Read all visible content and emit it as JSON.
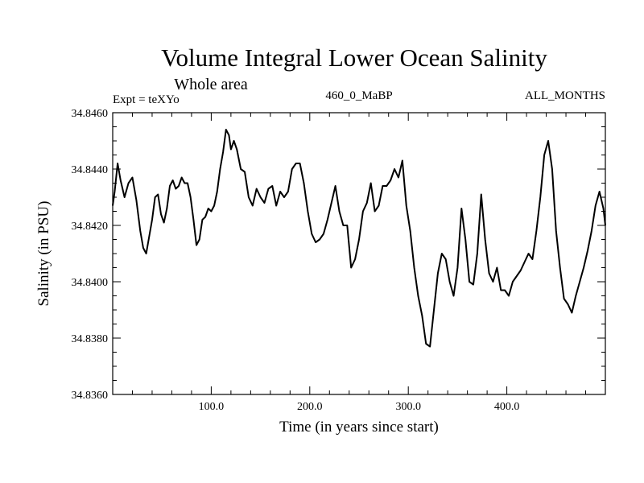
{
  "chart_data": {
    "type": "line",
    "title": "Volume Integral Lower Ocean Salinity",
    "subtitle": "Whole area",
    "annotations": {
      "experiment": "Expt = teXYo",
      "run": "460_0_MaBP",
      "months": "ALL_MONTHS"
    },
    "xlabel": "Time (in years since start)",
    "ylabel": "Salinity (in PSU)",
    "xlim": [
      0,
      500
    ],
    "ylim": [
      34.836,
      34.846
    ],
    "xticks": [
      100,
      200,
      300,
      400
    ],
    "xtick_labels": [
      "100.0",
      "200.0",
      "300.0",
      "400.0"
    ],
    "yticks": [
      34.836,
      34.838,
      34.84,
      34.842,
      34.844,
      34.846
    ],
    "ytick_labels": [
      "34.8360",
      "34.8380",
      "34.8400",
      "34.8420",
      "34.8440",
      "34.8460"
    ],
    "grid": false,
    "series": [
      {
        "color": "#000000",
        "x": [
          0,
          2,
          5,
          8,
          12,
          16,
          20,
          24,
          28,
          31,
          34,
          37,
          40,
          43,
          46,
          49,
          52,
          55,
          58,
          61,
          64,
          67,
          70,
          73,
          76,
          79,
          82,
          85,
          88,
          91,
          94,
          97,
          100,
          103,
          106,
          109,
          112,
          115,
          118,
          120,
          123,
          126,
          130,
          134,
          138,
          142,
          146,
          150,
          154,
          158,
          162,
          166,
          170,
          174,
          178,
          182,
          186,
          190,
          194,
          198,
          202,
          206,
          210,
          214,
          218,
          222,
          226,
          230,
          234,
          238,
          242,
          246,
          250,
          254,
          258,
          262,
          266,
          270,
          274,
          278,
          282,
          286,
          290,
          294,
          298,
          302,
          306,
          310,
          314,
          318,
          322,
          326,
          330,
          334,
          338,
          342,
          346,
          350,
          354,
          358,
          362,
          366,
          370,
          374,
          378,
          382,
          386,
          390,
          394,
          398,
          402,
          406,
          410,
          414,
          418,
          422,
          426,
          430,
          434,
          438,
          442,
          446,
          450,
          454,
          458,
          462,
          466,
          470,
          474,
          478,
          482,
          486,
          490,
          494,
          498,
          500
        ],
        "y": [
          34.8427,
          34.8432,
          34.8442,
          34.8436,
          34.843,
          34.8435,
          34.8437,
          34.8429,
          34.8418,
          34.8412,
          34.841,
          34.8416,
          34.8422,
          34.843,
          34.8431,
          34.8424,
          34.8421,
          34.8426,
          34.8434,
          34.8436,
          34.8433,
          34.8434,
          34.8437,
          34.8435,
          34.8435,
          34.843,
          34.8422,
          34.8413,
          34.8415,
          34.8422,
          34.8423,
          34.8426,
          34.8425,
          34.8427,
          34.8432,
          34.844,
          34.8446,
          34.8454,
          34.8452,
          34.8447,
          34.845,
          34.8447,
          34.844,
          34.8439,
          34.843,
          34.8427,
          34.8433,
          34.843,
          34.8428,
          34.8433,
          34.8434,
          34.8427,
          34.8432,
          34.843,
          34.8432,
          34.844,
          34.8442,
          34.8442,
          34.8435,
          34.8425,
          34.8417,
          34.8414,
          34.8415,
          34.8417,
          34.8422,
          34.8428,
          34.8434,
          34.8425,
          34.842,
          34.842,
          34.8405,
          34.8408,
          34.8415,
          34.8425,
          34.8428,
          34.8435,
          34.8425,
          34.8427,
          34.8434,
          34.8434,
          34.8436,
          34.844,
          34.8437,
          34.8443,
          34.8427,
          34.8418,
          34.8405,
          34.8395,
          34.8388,
          34.8378,
          34.8377,
          34.839,
          34.8403,
          34.841,
          34.8408,
          34.84,
          34.8395,
          34.8405,
          34.8426,
          34.8415,
          34.84,
          34.8399,
          34.841,
          34.8431,
          34.8415,
          34.8403,
          34.84,
          34.8405,
          34.8397,
          34.8397,
          34.8395,
          34.84,
          34.8402,
          34.8404,
          34.8407,
          34.841,
          34.8408,
          34.8418,
          34.843,
          34.8445,
          34.845,
          34.844,
          34.8418,
          34.8405,
          34.8394,
          34.8392,
          34.8389,
          34.8395,
          34.84,
          34.8405,
          34.8411,
          34.8418,
          34.8427,
          34.8432,
          34.8426,
          34.842
        ]
      }
    ]
  }
}
